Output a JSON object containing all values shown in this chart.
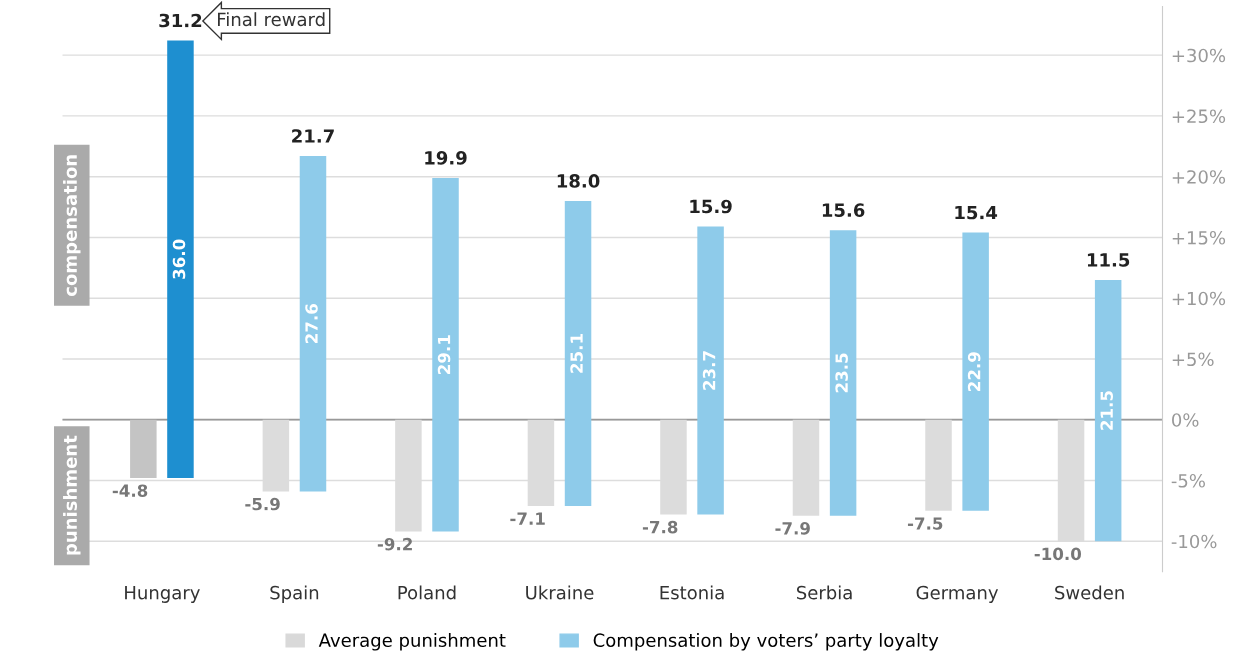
{
  "chart_data": {
    "type": "bar",
    "categories": [
      "Hungary",
      "Spain",
      "Poland",
      "Ukraine",
      "Estonia",
      "Serbia",
      "Germany",
      "Sweden"
    ],
    "series": [
      {
        "name": "Average punishment",
        "color": "#d9d9d9",
        "colors": [
          "#c4c4c4",
          "#dcdcdc",
          "#dcdcdc",
          "#dcdcdc",
          "#dcdcdc",
          "#dcdcdc",
          "#dcdcdc",
          "#dcdcdc"
        ],
        "values": [
          -4.8,
          -5.9,
          -9.2,
          -7.1,
          -7.8,
          -7.9,
          -7.5,
          -10.0
        ],
        "value_labels": [
          "-4.8",
          "-5.9",
          "-9.2",
          "-7.1",
          "-7.8",
          "-7.9",
          "-7.5",
          "-10.0"
        ]
      },
      {
        "name": "Compensation by voters’ party loyalty",
        "color": "#8ecbea",
        "colors": [
          "#1e8fd0",
          "#8ecbea",
          "#8ecbea",
          "#8ecbea",
          "#8ecbea",
          "#8ecbea",
          "#8ecbea",
          "#8ecbea"
        ],
        "base": [
          -4.8,
          -5.9,
          -9.2,
          -7.1,
          -7.8,
          -7.9,
          -7.5,
          -10.0
        ],
        "values": [
          36.0,
          27.6,
          29.1,
          25.1,
          23.7,
          23.5,
          22.9,
          21.5
        ],
        "value_labels": [
          "36.0",
          "27.6",
          "29.1",
          "25.1",
          "23.7",
          "23.5",
          "22.9",
          "21.5"
        ]
      }
    ],
    "totals": [
      "31.2",
      "21.7",
      "19.9",
      "18.0",
      "15.9",
      "15.6",
      "15.4",
      "11.5"
    ],
    "ylim": [
      -12.5,
      34
    ],
    "yticks": [
      {
        "value": -10,
        "label": "-10%"
      },
      {
        "value": -5,
        "label": "-5%"
      },
      {
        "value": 0,
        "label": "0%"
      },
      {
        "value": 5,
        "label": "+5%"
      },
      {
        "value": 10,
        "label": "+10%"
      },
      {
        "value": 15,
        "label": "+15%"
      },
      {
        "value": 20,
        "label": "+20%"
      },
      {
        "value": 25,
        "label": "+25%"
      },
      {
        "value": 30,
        "label": "+30%"
      }
    ],
    "grid": "y",
    "legend": "bottom",
    "ref_lines": [
      {
        "axis": "y",
        "value": 0,
        "color": "#999999"
      }
    ],
    "annotations": [
      "Final reward",
      "compensation",
      "punishment"
    ]
  }
}
